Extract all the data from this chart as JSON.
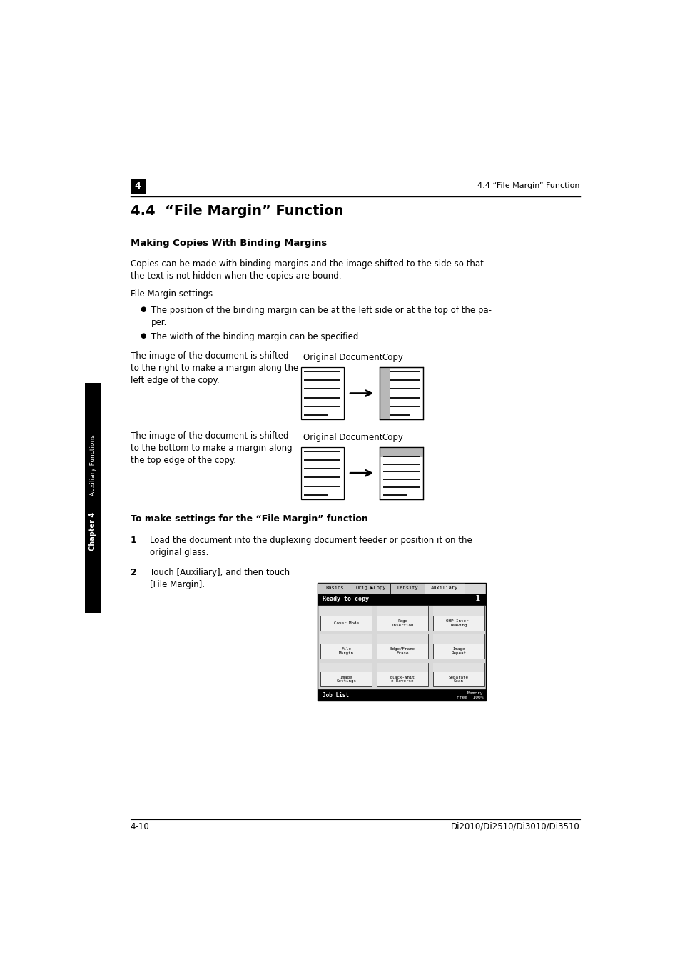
{
  "bg_color": "#ffffff",
  "chapter_label": "4",
  "header_right_text": "4.4 “File Margin” Function",
  "section_title": "4.4  “File Margin” Function",
  "subsection_title": "Making Copies With Binding Margins",
  "body_text1_line1": "Copies can be made with binding margins and the image shifted to the side so that",
  "body_text1_line2": "the text is not hidden when the copies are bound.",
  "body_text2": "File Margin settings",
  "bullet1_line1": "The position of the binding margin can be at the left side or at the top of the pa-",
  "bullet1_line2": "per.",
  "bullet2": "The width of the binding margin can be specified.",
  "diagram1_left_line1": "The image of the document is shifted",
  "diagram1_left_line2": "to the right to make a margin along the",
  "diagram1_left_line3": "left edge of the copy.",
  "diagram1_label_orig": "Original Document",
  "diagram1_label_copy": "Copy",
  "diagram2_left_line1": "The image of the document is shifted",
  "diagram2_left_line2": "to the bottom to make a margin along",
  "diagram2_left_line3": "the top edge of the copy.",
  "diagram2_label_orig": "Original Document",
  "diagram2_label_copy": "Copy",
  "step_heading": "To make settings for the “File Margin” function",
  "step1_line1": "Load the document into the duplexing document feeder or position it on the",
  "step1_line2": "original glass.",
  "step2_line1": "Touch [Auxiliary], and then touch",
  "step2_line2": "[File Margin].",
  "footer_left": "4-10",
  "footer_right": "Di2010/Di2510/Di3010/Di3510",
  "sidebar_text": "Auxiliary Functions",
  "sidebar_chapter": "Chapter 4",
  "sidebar_bg": "#000000",
  "sidebar_fg": "#ffffff",
  "tab_labels": [
    "Basics",
    "Orig.▶Copy",
    "Density",
    "Auxiliary"
  ],
  "btn_row1": [
    "Cover Mode",
    "Page\nInsertion",
    "OHP Inter-\nleaving"
  ],
  "btn_row2": [
    "File\nMargin",
    "Edge/Frame\nErase",
    "Image\nRepeat"
  ],
  "btn_row3": [
    "Image\nSettings",
    "Black-Whit\ne Reverse",
    "Separate\nScan"
  ],
  "screen_ready": "Ready to copy",
  "screen_joblist": "Job List",
  "screen_memory": "Memory\nFree",
  "screen_memory_pct": "100%"
}
